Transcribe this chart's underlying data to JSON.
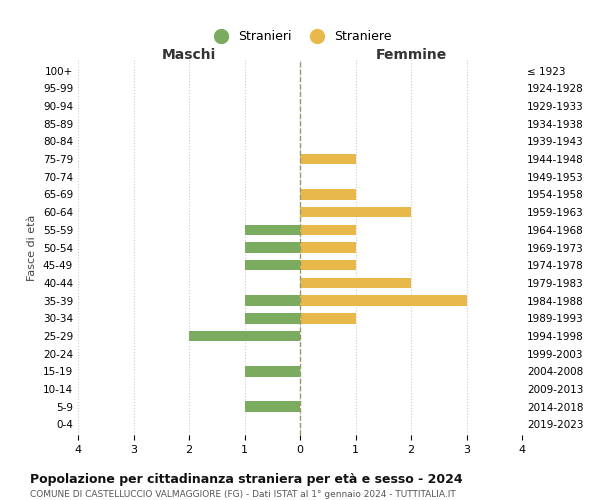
{
  "age_groups": [
    "100+",
    "95-99",
    "90-94",
    "85-89",
    "80-84",
    "75-79",
    "70-74",
    "65-69",
    "60-64",
    "55-59",
    "50-54",
    "45-49",
    "40-44",
    "35-39",
    "30-34",
    "25-29",
    "20-24",
    "15-19",
    "10-14",
    "5-9",
    "0-4"
  ],
  "birth_years": [
    "≤ 1923",
    "1924-1928",
    "1929-1933",
    "1934-1938",
    "1939-1943",
    "1944-1948",
    "1949-1953",
    "1954-1958",
    "1959-1963",
    "1964-1968",
    "1969-1973",
    "1974-1978",
    "1979-1983",
    "1984-1988",
    "1989-1993",
    "1994-1998",
    "1999-2003",
    "2004-2008",
    "2009-2013",
    "2014-2018",
    "2019-2023"
  ],
  "maschi": [
    0,
    0,
    0,
    0,
    0,
    0,
    0,
    0,
    0,
    1,
    1,
    1,
    0,
    1,
    1,
    2,
    0,
    1,
    0,
    1,
    0
  ],
  "femmine": [
    0,
    0,
    0,
    0,
    0,
    1,
    0,
    1,
    2,
    1,
    1,
    1,
    2,
    3,
    1,
    0,
    0,
    0,
    0,
    0,
    0
  ],
  "maschi_color": "#7aab5e",
  "femmine_color": "#e8b84b",
  "title": "Popolazione per cittadinanza straniera per età e sesso - 2024",
  "subtitle": "COMUNE DI CASTELLUCCIO VALMAGGIORE (FG) - Dati ISTAT al 1° gennaio 2024 - TUTTITALIA.IT",
  "legend_maschi": "Stranieri",
  "legend_femmine": "Straniere",
  "xlabel_left": "Maschi",
  "xlabel_right": "Femmine",
  "ylabel_left": "Fasce di età",
  "xlim": 4,
  "background_color": "#ffffff",
  "grid_color": "#cccccc",
  "center_line_color": "#999966"
}
